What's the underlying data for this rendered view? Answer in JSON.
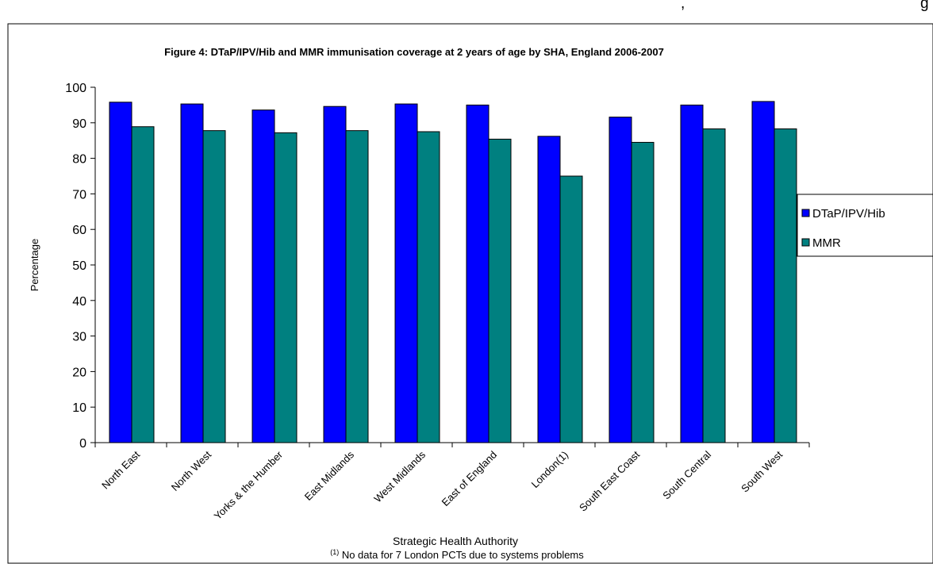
{
  "top_fragments": {
    "left": ",",
    "right": "g"
  },
  "legend": [
    {
      "label": "DTaP/IPV/Hib",
      "color": "#0000ff"
    },
    {
      "label": "MMR",
      "color": "#008080"
    }
  ],
  "footnote": {
    "marker": "(1)",
    "text": " No data for 7 London PCTs due to systems problems"
  },
  "chart_data": {
    "type": "bar",
    "title": "Figure 4:  DTaP/IPV/Hib and MMR immunisation coverage at 2 years of age by SHA, England 2006-2007",
    "xlabel": "Strategic Health Authority",
    "ylabel": "Percentage",
    "ylim": [
      0,
      100
    ],
    "yticks": [
      0,
      10,
      20,
      30,
      40,
      50,
      60,
      70,
      80,
      90,
      100
    ],
    "grid": false,
    "legend_position": "right",
    "categories": [
      "North East",
      "North West",
      "Yorks & the Humber",
      "East Midlands",
      "West Midlands",
      "East of England",
      "London(1)",
      "South East Coast",
      "South Central",
      "South West"
    ],
    "series": [
      {
        "name": "DTaP/IPV/Hib",
        "color": "#0000ff",
        "values": [
          95.8,
          95.3,
          93.6,
          94.6,
          95.3,
          95.0,
          86.2,
          91.6,
          95.0,
          96.0
        ]
      },
      {
        "name": "MMR",
        "color": "#008080",
        "values": [
          88.9,
          87.8,
          87.2,
          87.8,
          87.5,
          85.4,
          75.0,
          84.5,
          88.3,
          88.3
        ]
      }
    ]
  }
}
